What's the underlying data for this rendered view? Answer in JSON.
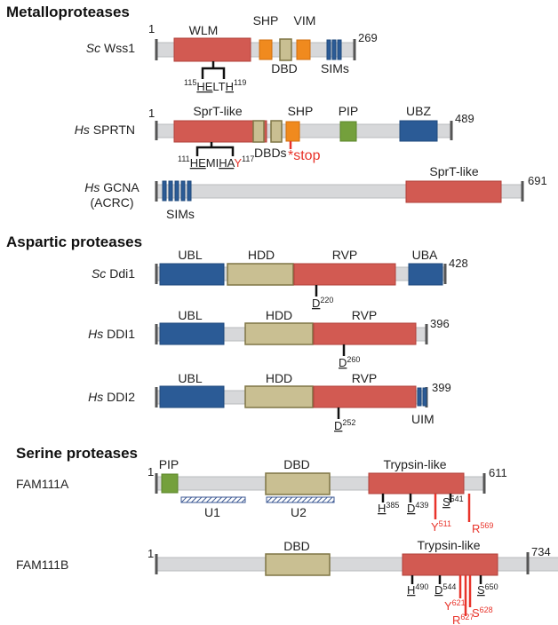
{
  "sections": {
    "metallo": "Metalloproteases",
    "aspartic": "Aspartic proteases",
    "serine": "Serine proteases"
  },
  "wss1": {
    "species": "Sc",
    "name": "Wss1",
    "start": "1",
    "end": "269",
    "domains": {
      "wlm": "WLM",
      "shp": "SHP",
      "vim": "VIM",
      "dbd": "DBD",
      "sims": "SIMs"
    },
    "motif": {
      "start": "115",
      "l1": "HE",
      "l2": "LT",
      "l3": "H",
      "end": "119"
    }
  },
  "sprtn": {
    "species": "Hs",
    "name": "SPRTN",
    "start": "1",
    "end": "489",
    "domains": {
      "sprt": "SprT-like",
      "shp": "SHP",
      "pip": "PIP",
      "ubz": "UBZ",
      "dbds": "DBDs"
    },
    "stop": "*stop",
    "motif": {
      "start": "111",
      "l1": "HE",
      "l2": "MI",
      "l3": "HA",
      "mut": "Y",
      "end": "117"
    }
  },
  "gcna": {
    "species": "Hs",
    "name": "GCNA",
    "alias": "(ACRC)",
    "end": "691",
    "domains": {
      "sprt": "SprT-like",
      "sims": "SIMs"
    }
  },
  "ddi1_sc": {
    "species": "Sc",
    "name": "Ddi1",
    "end": "428",
    "domains": {
      "ubl": "UBL",
      "hdd": "HDD",
      "rvp": "RVP",
      "uba": "UBA"
    },
    "residue": {
      "aa": "D",
      "pos": "220"
    }
  },
  "ddi1_hs": {
    "species": "Hs",
    "name": "DDI1",
    "end": "396",
    "domains": {
      "ubl": "UBL",
      "hdd": "HDD",
      "rvp": "RVP"
    },
    "residue": {
      "aa": "D",
      "pos": "260"
    }
  },
  "ddi2_hs": {
    "species": "Hs",
    "name": "DDI2",
    "end": "399",
    "domains": {
      "ubl": "UBL",
      "hdd": "HDD",
      "rvp": "RVP",
      "uim": "UIM"
    },
    "residue": {
      "aa": "D",
      "pos": "252"
    }
  },
  "fam111a": {
    "name": "FAM111A",
    "start": "1",
    "end": "611",
    "domains": {
      "pip": "PIP",
      "dbd": "DBD",
      "tryp": "Trypsin-like",
      "u1": "U1",
      "u2": "U2"
    },
    "residues": [
      {
        "aa": "H",
        "pos": "385"
      },
      {
        "aa": "D",
        "pos": "439"
      },
      {
        "aa": "S",
        "pos": "541"
      }
    ],
    "mutations": [
      {
        "aa": "Y",
        "pos": "511"
      },
      {
        "aa": "R",
        "pos": "569"
      }
    ]
  },
  "fam111b": {
    "name": "FAM111B",
    "start": "1",
    "end": "734",
    "domains": {
      "dbd": "DBD",
      "tryp": "Trypsin-like"
    },
    "residues": [
      {
        "aa": "H",
        "pos": "490"
      },
      {
        "aa": "D",
        "pos": "544"
      },
      {
        "aa": "S",
        "pos": "650"
      }
    ],
    "mutations": [
      {
        "aa": "Y",
        "pos": "621"
      },
      {
        "aa": "S",
        "pos": "628"
      },
      {
        "aa": "R",
        "pos": "627"
      }
    ]
  },
  "colors": {
    "metal": "#d25a52",
    "blue": "#2b5b96",
    "tan": "#c9bf92",
    "orange": "#f08a1e",
    "green": "#74a03c",
    "red": "#e8332a",
    "bar": "#d7d8da"
  }
}
